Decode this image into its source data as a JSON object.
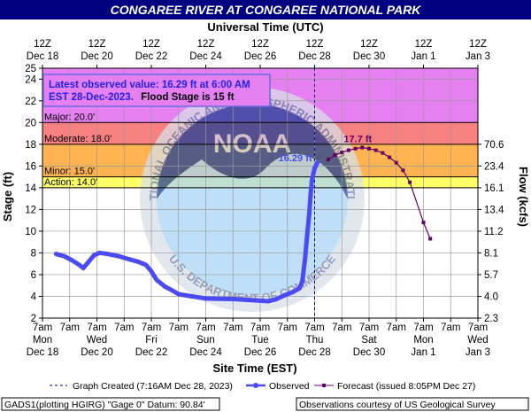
{
  "title": "CONGAREE RIVER AT CONGAREE NATIONAL PARK",
  "top_axis": {
    "title": "Universal Time (UTC)",
    "ticks": [
      {
        "day": 18,
        "l1": "12Z",
        "l2": "Dec 18"
      },
      {
        "day": 20,
        "l1": "12Z",
        "l2": "Dec 20"
      },
      {
        "day": 22,
        "l1": "12Z",
        "l2": "Dec 22"
      },
      {
        "day": 24,
        "l1": "12Z",
        "l2": "Dec 24"
      },
      {
        "day": 26,
        "l1": "12Z",
        "l2": "Dec 26"
      },
      {
        "day": 28,
        "l1": "12Z",
        "l2": "Dec 28"
      },
      {
        "day": 30,
        "l1": "12Z",
        "l2": "Dec 30"
      },
      {
        "day": 32,
        "l1": "12Z",
        "l2": "Jan 1"
      },
      {
        "day": 34,
        "l1": "12Z",
        "l2": "Jan 3"
      }
    ]
  },
  "bottom_axis": {
    "title": "Site Time (EST)",
    "ticks": [
      {
        "day": 18,
        "l1": "7am",
        "l2": "Mon",
        "l3": "Dec 18"
      },
      {
        "day": 19,
        "l1": "7am",
        "l2": "",
        "l3": ""
      },
      {
        "day": 20,
        "l1": "7am",
        "l2": "Wed",
        "l3": "Dec 20"
      },
      {
        "day": 21,
        "l1": "7am",
        "l2": "",
        "l3": ""
      },
      {
        "day": 22,
        "l1": "7am",
        "l2": "Fri",
        "l3": "Dec 22"
      },
      {
        "day": 23,
        "l1": "7am",
        "l2": "",
        "l3": ""
      },
      {
        "day": 24,
        "l1": "7am",
        "l2": "Sun",
        "l3": "Dec 24"
      },
      {
        "day": 25,
        "l1": "7am",
        "l2": "",
        "l3": ""
      },
      {
        "day": 26,
        "l1": "7am",
        "l2": "Tue",
        "l3": "Dec 26"
      },
      {
        "day": 27,
        "l1": "7am",
        "l2": "",
        "l3": ""
      },
      {
        "day": 28,
        "l1": "7am",
        "l2": "Thu",
        "l3": "Dec 28"
      },
      {
        "day": 29,
        "l1": "7am",
        "l2": "",
        "l3": ""
      },
      {
        "day": 30,
        "l1": "7am",
        "l2": "Sat",
        "l3": "Dec 30"
      },
      {
        "day": 31,
        "l1": "7am",
        "l2": "",
        "l3": ""
      },
      {
        "day": 32,
        "l1": "7am",
        "l2": "Mon",
        "l3": "Jan 1"
      },
      {
        "day": 33,
        "l1": "7am",
        "l2": "",
        "l3": ""
      },
      {
        "day": 34,
        "l1": "7am",
        "l2": "Wed",
        "l3": "Jan 3"
      }
    ]
  },
  "left_axis": {
    "title": "Stage (ft)",
    "min": 2,
    "max": 25,
    "ticks": [
      2,
      4,
      6,
      8,
      10,
      12,
      14,
      16,
      18,
      20,
      22,
      24,
      25
    ]
  },
  "right_axis": {
    "title": "Flow (kcfs)",
    "ticks": [
      {
        "stage": 2,
        "label": "2.3"
      },
      {
        "stage": 4,
        "label": "4.0"
      },
      {
        "stage": 6,
        "label": "5.7"
      },
      {
        "stage": 8,
        "label": "8.1"
      },
      {
        "stage": 10,
        "label": "11.2"
      },
      {
        "stage": 12,
        "label": "13.4"
      },
      {
        "stage": 14,
        "label": "16.1"
      },
      {
        "stage": 16,
        "label": "23.4"
      },
      {
        "stage": 18,
        "label": "70.6"
      }
    ]
  },
  "flood_categories": [
    {
      "label": "Action: 14.0'",
      "from": 14,
      "to": 15,
      "color": "#ffff66"
    },
    {
      "label": "Minor: 15.0'",
      "from": 15,
      "to": 18,
      "color": "#ffb451"
    },
    {
      "label": "Moderate: 18.0'",
      "from": 18,
      "to": 20,
      "color": "#f78080"
    },
    {
      "label": "Major: 20.0'",
      "from": 20,
      "to": 25,
      "color": "#e680f2"
    }
  ],
  "info_box": {
    "line1": "Latest observed value: 16.29 ft at 6:00 AM",
    "line2a": "EST 28-Dec-2023.",
    "line2b": "Flood Stage is 15 ft"
  },
  "annotations": {
    "observed_label": "16.29 ft",
    "forecast_crest_label": "17.7 ft"
  },
  "legend": {
    "graph_created": "Graph Created (7:16AM Dec 28, 2023)",
    "observed": "Observed",
    "forecast": "Forecast (issued 8:05PM Dec 27)"
  },
  "footer": {
    "left": "GADS1(plotting HGIRG) \"Gage 0\" Datum:  90.84'",
    "right": "Observations courtesy of US Geological Survey"
  },
  "watermark": {
    "center_text": "NOAA",
    "ring_text": "NATIONAL OCEANIC AND ATMOSPHERIC ADMINISTRATION",
    "bottom_text": "U.S. DEPARTMENT OF COMMERCE"
  },
  "colors": {
    "observed": "#4b4bf5",
    "forecast": "#660066",
    "title_bar": "#000080",
    "created_line": "#000080"
  },
  "chart_data": {
    "type": "line",
    "title": "CONGAREE RIVER AT CONGAREE NATIONAL PARK",
    "xlabel": "Site Time (EST)",
    "ylabel": "Stage (ft)",
    "y2label": "Flow (kcfs)",
    "xlim": [
      "Dec 18 7am",
      "Jan 3 7am"
    ],
    "ylim": [
      2,
      25
    ],
    "graph_created_day": 28.0,
    "series": [
      {
        "name": "Observed",
        "points": [
          [
            18.5,
            7.9
          ],
          [
            18.8,
            7.7
          ],
          [
            19.1,
            7.3
          ],
          [
            19.35,
            6.9
          ],
          [
            19.5,
            6.6
          ],
          [
            19.7,
            7.2
          ],
          [
            19.9,
            7.8
          ],
          [
            20.1,
            8.0
          ],
          [
            20.4,
            7.9
          ],
          [
            20.8,
            7.7
          ],
          [
            21.2,
            7.4
          ],
          [
            21.5,
            7.2
          ],
          [
            21.8,
            6.9
          ],
          [
            22.0,
            6.3
          ],
          [
            22.2,
            5.5
          ],
          [
            22.5,
            4.9
          ],
          [
            22.8,
            4.5
          ],
          [
            23.0,
            4.2
          ],
          [
            23.5,
            4.0
          ],
          [
            24.0,
            3.8
          ],
          [
            25.0,
            3.75
          ],
          [
            26.0,
            3.6
          ],
          [
            26.3,
            3.55
          ],
          [
            26.6,
            3.75
          ],
          [
            26.9,
            4.1
          ],
          [
            27.2,
            4.4
          ],
          [
            27.45,
            4.75
          ],
          [
            27.55,
            5.4
          ],
          [
            27.65,
            7.5
          ],
          [
            27.72,
            9.5
          ],
          [
            27.8,
            11.5
          ],
          [
            27.85,
            13.3
          ],
          [
            27.9,
            14.7
          ],
          [
            28.0,
            15.8
          ],
          [
            28.1,
            16.29
          ]
        ]
      },
      {
        "name": "Forecast",
        "points": [
          [
            28.5,
            16.6
          ],
          [
            28.75,
            17.0
          ],
          [
            29.0,
            17.25
          ],
          [
            29.25,
            17.45
          ],
          [
            29.5,
            17.6
          ],
          [
            29.75,
            17.7
          ],
          [
            30.0,
            17.6
          ],
          [
            30.25,
            17.45
          ],
          [
            30.5,
            17.2
          ],
          [
            30.75,
            16.8
          ],
          [
            31.0,
            16.3
          ],
          [
            31.25,
            15.6
          ],
          [
            31.5,
            14.5
          ],
          [
            32.0,
            10.8
          ],
          [
            32.25,
            9.3
          ]
        ]
      }
    ]
  }
}
